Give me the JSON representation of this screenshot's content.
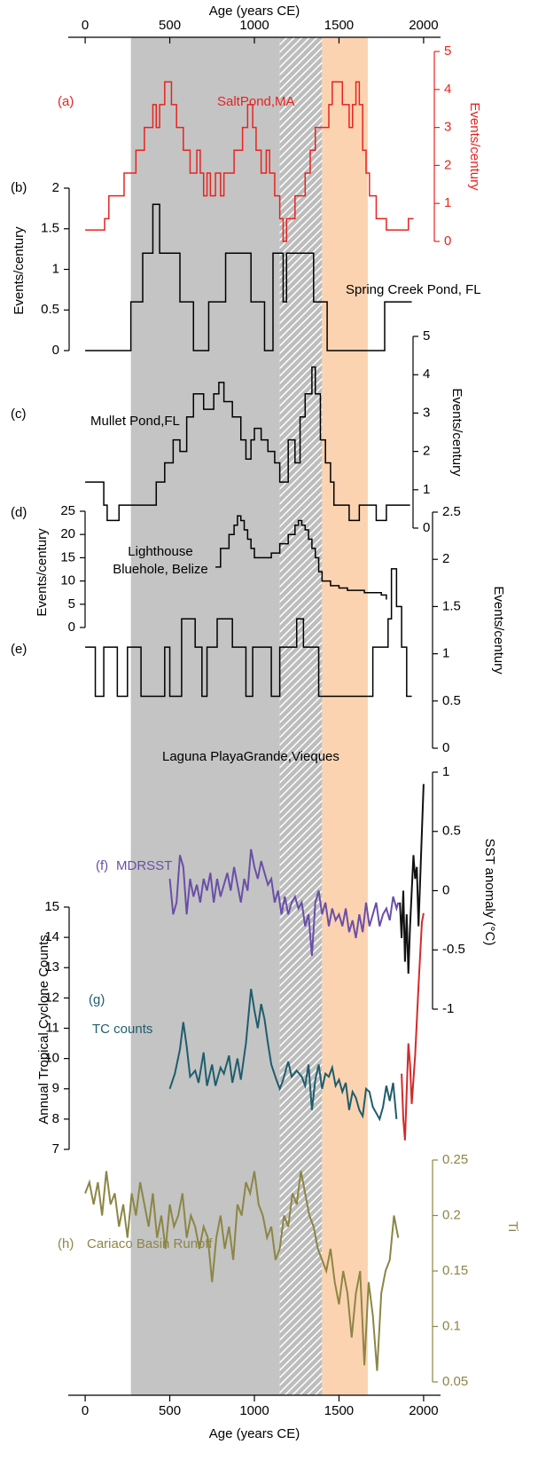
{
  "shared_x_axis": {
    "label": "Age (years CE)",
    "xlim": [
      -100,
      2100
    ],
    "xticks": [
      0,
      500,
      1000,
      1500,
      2000
    ]
  },
  "shaded_periods": [
    {
      "range": [
        270,
        1150
      ],
      "color": "#c4c4c4"
    },
    {
      "range": [
        1150,
        1400
      ],
      "pattern": "hatch"
    },
    {
      "range": [
        1400,
        1670
      ],
      "color": "#fcd3b1"
    }
  ],
  "chart_data": [
    {
      "type": "line",
      "panel": "(a)",
      "drawstyle": "steps-post",
      "axis_side": "right",
      "axis_label": "Events/century",
      "axis_color": "#e8231f",
      "ylim": [
        0,
        5
      ],
      "yticks": [
        0,
        1,
        2,
        3,
        4,
        5
      ],
      "series": [
        {
          "name": "SaltPond,MA",
          "color": "#e8231f",
          "x": [
            0,
            115,
            140,
            230,
            300,
            350,
            400,
            420,
            440,
            470,
            510,
            540,
            580,
            620,
            660,
            680,
            700,
            720,
            740,
            770,
            800,
            820,
            880,
            930,
            960,
            990,
            1010,
            1040,
            1070,
            1090,
            1120,
            1150,
            1170,
            1190,
            1240,
            1300,
            1330,
            1360,
            1420,
            1440,
            1460,
            1520,
            1560,
            1580,
            1600,
            1620,
            1640,
            1660,
            1680,
            1720,
            1780,
            1910,
            1940
          ],
          "values": [
            0.3,
            0.6,
            1.2,
            1.8,
            2.4,
            3,
            3.6,
            3,
            3.6,
            4.2,
            3.6,
            3,
            2.4,
            1.8,
            2.4,
            1.8,
            1.2,
            1.8,
            1.2,
            1.8,
            1.2,
            1.8,
            2.4,
            3,
            3.6,
            3,
            2.4,
            1.8,
            2.4,
            1.8,
            1.2,
            0.6,
            0,
            0.6,
            1.2,
            1.8,
            2.4,
            3,
            3,
            3.6,
            4.2,
            3.6,
            3,
            3.6,
            4.2,
            3.6,
            2.4,
            1.8,
            1.2,
            0.6,
            0.3,
            0.6,
            0.6
          ]
        }
      ]
    },
    {
      "type": "line",
      "panel": "(b)",
      "drawstyle": "steps-post",
      "axis_side": "left",
      "axis_label": "Events/century",
      "axis_color": "#000000",
      "ylim": [
        0,
        2
      ],
      "yticks": [
        0,
        0.5,
        1,
        1.5,
        2
      ],
      "series": [
        {
          "name": "Spring Creek Pond, FL",
          "color": "#000000",
          "x": [
            0,
            270,
            340,
            400,
            440,
            560,
            640,
            730,
            830,
            980,
            1060,
            1110,
            1170,
            1190,
            1350,
            1430,
            1770,
            1930
          ],
          "values": [
            0,
            0.6,
            1.2,
            1.8,
            1.2,
            0.6,
            0,
            0.6,
            1.2,
            0.6,
            0,
            1.2,
            0.6,
            1.2,
            0.6,
            0,
            0.6,
            0.6
          ]
        }
      ]
    },
    {
      "type": "line",
      "panel": "(c)",
      "drawstyle": "steps-post",
      "axis_side": "right",
      "axis_label": "Events/century",
      "axis_color": "#000000",
      "ylim": [
        0,
        5
      ],
      "yticks": [
        0,
        1,
        2,
        3,
        4,
        5
      ],
      "series": [
        {
          "name": "Mullet Pond,FL",
          "color": "#000000",
          "x": [
            0,
            110,
            130,
            200,
            280,
            330,
            420,
            470,
            520,
            560,
            600,
            640,
            700,
            760,
            790,
            820,
            870,
            920,
            950,
            980,
            1000,
            1040,
            1080,
            1120,
            1150,
            1200,
            1240,
            1270,
            1300,
            1340,
            1360,
            1390,
            1420,
            1450,
            1470,
            1560,
            1620,
            1720,
            1780,
            1920
          ],
          "values": [
            1.2,
            0.6,
            0.2,
            0.6,
            0.6,
            0.6,
            1.2,
            1.7,
            2.3,
            2.0,
            2.9,
            3.5,
            3.1,
            3.5,
            3.8,
            3.3,
            2.9,
            2.3,
            1.8,
            2.3,
            2.6,
            2.3,
            2.0,
            1.7,
            1.2,
            2.3,
            1.7,
            2.9,
            3.5,
            4.2,
            3.5,
            2.3,
            1.7,
            1.2,
            0.6,
            0.2,
            0.6,
            0.2,
            0.6,
            0.6
          ]
        }
      ]
    },
    {
      "type": "line",
      "panel": "(d)",
      "drawstyle": "steps-post",
      "axis_side": "left",
      "axis_label": "Events/century",
      "axis_color": "#000000",
      "ylim": [
        0,
        25
      ],
      "yticks": [
        0,
        5,
        10,
        15,
        20,
        25
      ],
      "series": [
        {
          "name": "Lighthouse Bluehole, Belize",
          "color": "#000000",
          "x": [
            770,
            800,
            850,
            880,
            900,
            920,
            940,
            960,
            980,
            1000,
            1050,
            1100,
            1150,
            1200,
            1240,
            1260,
            1280,
            1300,
            1320,
            1340,
            1360,
            1380,
            1400,
            1450,
            1500,
            1550,
            1600,
            1650,
            1700,
            1750,
            1780
          ],
          "values": [
            13,
            17,
            20,
            22,
            24,
            23,
            21,
            19,
            17,
            15,
            15,
            16,
            18,
            20,
            22,
            23,
            22,
            21,
            19,
            17,
            15,
            12,
            10,
            9,
            8.5,
            8,
            8,
            7.5,
            7.5,
            7,
            6
          ]
        }
      ]
    },
    {
      "type": "line",
      "panel": "(e)",
      "drawstyle": "steps-post",
      "axis_side": "right",
      "axis_label": "Events/century",
      "axis_color": "#000000",
      "ylim": [
        0,
        2.5
      ],
      "yticks": [
        0,
        0.5,
        1,
        1.5,
        2,
        2.5
      ],
      "series": [
        {
          "name": "Laguna PlayaGrande,Vieques",
          "color": "#000000",
          "x": [
            0,
            60,
            110,
            190,
            250,
            330,
            470,
            500,
            570,
            650,
            690,
            720,
            780,
            870,
            950,
            990,
            1100,
            1150,
            1250,
            1290,
            1380,
            1560,
            1700,
            1790,
            1810,
            1840,
            1870,
            1900,
            1930
          ],
          "values": [
            1.07,
            0.55,
            1.07,
            0.55,
            1.07,
            0.55,
            1.07,
            0.55,
            1.37,
            1.07,
            0.55,
            1.07,
            1.37,
            1.07,
            0.55,
            1.07,
            0.55,
            1.07,
            1.37,
            1.07,
            0.55,
            0.55,
            1.07,
            1.37,
            1.9,
            1.5,
            1.07,
            0.55,
            0.55
          ]
        }
      ]
    },
    {
      "type": "line",
      "panel": "(f)",
      "drawstyle": "line",
      "axis_side": "right",
      "axis_label": "SST anomaly (°C)",
      "axis_color": "#000000",
      "ylim": [
        -1,
        1
      ],
      "yticks": [
        -1,
        -0.5,
        0,
        0.5,
        1
      ],
      "series": [
        {
          "name": "MDRSST",
          "color": "#6a4fa8",
          "x": [
            500,
            520,
            540,
            560,
            580,
            600,
            620,
            640,
            660,
            680,
            700,
            720,
            740,
            760,
            780,
            800,
            820,
            840,
            860,
            880,
            900,
            920,
            940,
            960,
            980,
            1000,
            1020,
            1040,
            1060,
            1080,
            1100,
            1120,
            1140,
            1160,
            1180,
            1200,
            1220,
            1240,
            1260,
            1280,
            1300,
            1320,
            1340,
            1360,
            1380,
            1400,
            1420,
            1440,
            1460,
            1480,
            1500,
            1520,
            1540,
            1560,
            1580,
            1600,
            1620,
            1640,
            1660,
            1680,
            1700,
            1720,
            1740,
            1760,
            1780,
            1800,
            1820,
            1840,
            1850
          ],
          "values": [
            0.1,
            -0.2,
            -0.1,
            0.3,
            0.2,
            -0.2,
            0.1,
            -0.05,
            0.05,
            -0.1,
            0.1,
            0.0,
            0.15,
            -0.1,
            0.1,
            -0.05,
            0.05,
            0.15,
            0.0,
            0.2,
            0.05,
            -0.1,
            0.1,
            0.0,
            0.35,
            0.2,
            0.1,
            0.25,
            0.15,
            0.05,
            0.1,
            -0.1,
            0.0,
            -0.2,
            -0.05,
            -0.2,
            -0.1,
            -0.05,
            -0.15,
            -0.1,
            -0.3,
            -0.2,
            -0.55,
            -0.1,
            0.0,
            -0.2,
            -0.1,
            -0.3,
            -0.15,
            -0.25,
            -0.2,
            -0.3,
            -0.15,
            -0.35,
            -0.25,
            -0.4,
            -0.2,
            -0.35,
            -0.1,
            -0.3,
            -0.2,
            -0.1,
            -0.3,
            -0.2,
            -0.15,
            -0.25,
            -0.05,
            -0.15,
            -0.1
          ]
        },
        {
          "color": "#111111",
          "x": [
            1860,
            1870,
            1880,
            1890,
            1900,
            1910,
            1920,
            1930,
            1940,
            1950,
            1960,
            1970,
            1980,
            1990,
            2000
          ],
          "values": [
            -0.1,
            -0.4,
            0.0,
            -0.6,
            -0.2,
            -0.7,
            -0.3,
            0.0,
            0.3,
            0.1,
            0.2,
            -0.3,
            0.1,
            0.5,
            0.9
          ]
        }
      ]
    },
    {
      "type": "line",
      "panel": "(g)",
      "drawstyle": "line",
      "axis_side": "left",
      "axis_label": "Annual Tropical Cyclone Counts",
      "axis_color": "#000000",
      "ylim": [
        7,
        15
      ],
      "yticks": [
        7,
        8,
        9,
        10,
        11,
        12,
        13,
        14,
        15
      ],
      "series": [
        {
          "name": "TC counts",
          "color": "#1e5d6d",
          "x": [
            500,
            530,
            560,
            580,
            600,
            620,
            650,
            670,
            700,
            720,
            750,
            770,
            800,
            820,
            850,
            870,
            900,
            920,
            950,
            980,
            1000,
            1020,
            1040,
            1060,
            1080,
            1100,
            1130,
            1150,
            1170,
            1200,
            1220,
            1250,
            1280,
            1300,
            1320,
            1340,
            1360,
            1380,
            1400,
            1420,
            1440,
            1460,
            1480,
            1500,
            1520,
            1540,
            1560,
            1580,
            1600,
            1620,
            1640,
            1660,
            1680,
            1700,
            1720,
            1740,
            1760,
            1780,
            1800,
            1820,
            1840
          ],
          "values": [
            9.0,
            9.5,
            10.3,
            11.2,
            10.4,
            9.4,
            9.6,
            9.2,
            10.2,
            9.1,
            9.8,
            9.1,
            9.7,
            9.5,
            10.1,
            9.2,
            10.0,
            9.3,
            10.5,
            12.3,
            11.6,
            11.0,
            11.8,
            11.3,
            10.5,
            9.8,
            9.3,
            9.0,
            9.3,
            9.9,
            9.4,
            9.6,
            9.4,
            9.1,
            9.8,
            8.3,
            9.3,
            9.8,
            9.0,
            9.5,
            9.4,
            9.7,
            9.1,
            9.3,
            8.9,
            9.2,
            8.3,
            8.9,
            8.7,
            8.3,
            8.1,
            9.0,
            8.9,
            8.4,
            8.2,
            8.0,
            8.4,
            9.1,
            8.6,
            9.2,
            8.0
          ]
        },
        {
          "color": "#d42a2a",
          "x": [
            1870,
            1880,
            1890,
            1900,
            1910,
            1920,
            1930,
            1950,
            1970,
            1990,
            2000
          ],
          "values": [
            9.5,
            8,
            7.3,
            8.9,
            10.5,
            9.8,
            8.5,
            10.1,
            12.4,
            14.5,
            14.8
          ]
        }
      ]
    },
    {
      "type": "line",
      "panel": "(h)",
      "drawstyle": "line",
      "axis_side": "right",
      "axis_label": "Ti",
      "axis_color": "#8c8645",
      "ylim": [
        0.05,
        0.25
      ],
      "yticks": [
        0.05,
        0.1,
        0.15,
        0.2,
        0.25
      ],
      "series": [
        {
          "name": "Cariaco Basin Runoff",
          "color": "#8c8645",
          "x": [
            0,
            25,
            50,
            75,
            100,
            125,
            150,
            175,
            200,
            225,
            250,
            275,
            300,
            325,
            350,
            375,
            400,
            425,
            450,
            475,
            500,
            525,
            550,
            575,
            600,
            625,
            650,
            675,
            700,
            725,
            750,
            775,
            800,
            825,
            850,
            875,
            900,
            925,
            950,
            975,
            1000,
            1025,
            1050,
            1075,
            1100,
            1125,
            1150,
            1175,
            1200,
            1225,
            1250,
            1275,
            1300,
            1325,
            1350,
            1375,
            1400,
            1425,
            1450,
            1475,
            1500,
            1525,
            1550,
            1575,
            1600,
            1625,
            1650,
            1675,
            1700,
            1725,
            1750,
            1775,
            1800,
            1825,
            1850
          ],
          "values": [
            0.22,
            0.23,
            0.21,
            0.23,
            0.2,
            0.24,
            0.21,
            0.22,
            0.19,
            0.21,
            0.18,
            0.22,
            0.2,
            0.23,
            0.21,
            0.19,
            0.22,
            0.18,
            0.2,
            0.17,
            0.21,
            0.19,
            0.2,
            0.22,
            0.18,
            0.2,
            0.19,
            0.17,
            0.19,
            0.18,
            0.14,
            0.18,
            0.2,
            0.17,
            0.19,
            0.16,
            0.21,
            0.2,
            0.23,
            0.22,
            0.24,
            0.21,
            0.2,
            0.18,
            0.19,
            0.16,
            0.17,
            0.2,
            0.19,
            0.22,
            0.21,
            0.24,
            0.22,
            0.2,
            0.19,
            0.17,
            0.16,
            0.15,
            0.17,
            0.14,
            0.12,
            0.15,
            0.13,
            0.09,
            0.13,
            0.15,
            0.065,
            0.14,
            0.11,
            0.06,
            0.13,
            0.15,
            0.16,
            0.2,
            0.18
          ]
        }
      ]
    }
  ]
}
